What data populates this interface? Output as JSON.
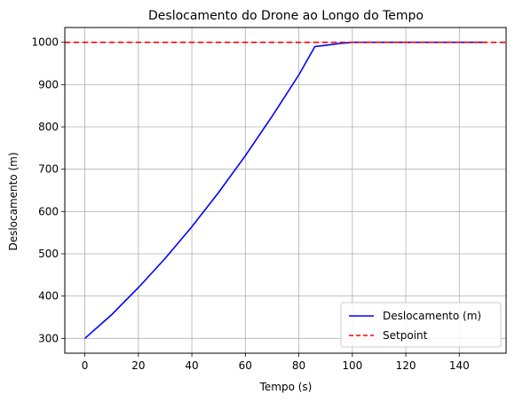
{
  "chart_data": {
    "type": "line",
    "title": "Deslocamento do Drone ao Longo do Tempo",
    "xlabel": "Tempo (s)",
    "ylabel": "Deslocamento (m)",
    "xlim": [
      -7.5,
      157.5
    ],
    "ylim": [
      265,
      1035
    ],
    "xticks": [
      0,
      20,
      40,
      60,
      80,
      100,
      120,
      140
    ],
    "yticks": [
      300,
      400,
      500,
      600,
      700,
      800,
      900,
      1000
    ],
    "grid": true,
    "legend_position": "lower-right",
    "series": [
      {
        "name": "Deslocamento (m)",
        "color": "#0000ff",
        "style": "solid",
        "x": [
          0,
          10,
          20,
          30,
          40,
          50,
          60,
          70,
          80,
          86,
          90,
          95,
          100,
          110,
          120,
          130,
          140,
          150
        ],
        "y": [
          300,
          356,
          420,
          489,
          564,
          645,
          732,
          825,
          923,
          990,
          993,
          997,
          1000,
          1000,
          1000,
          1000,
          1000,
          1000
        ]
      },
      {
        "name": "Setpoint",
        "color": "#ff0000",
        "style": "dashed",
        "y": 1000
      }
    ]
  }
}
